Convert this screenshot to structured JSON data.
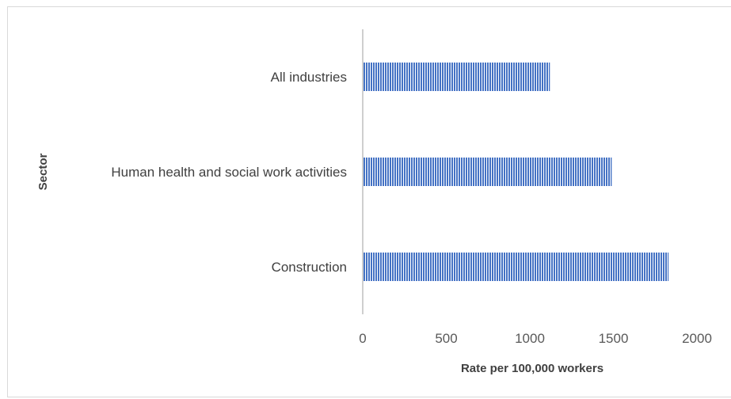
{
  "chart_data": {
    "type": "bar",
    "orientation": "horizontal",
    "categories": [
      "All industries",
      "Human health and social work activities",
      "Construction"
    ],
    "values": [
      1120,
      1490,
      1830
    ],
    "xlabel": "Rate per 100,000 workers",
    "ylabel": "Sector",
    "xlim": [
      0,
      2000
    ],
    "xticks": [
      0,
      500,
      1000,
      1500,
      2000
    ],
    "grid": false,
    "legend": "none",
    "bar_color": "#4472c4",
    "bar_pattern": "vertical-stripes"
  }
}
